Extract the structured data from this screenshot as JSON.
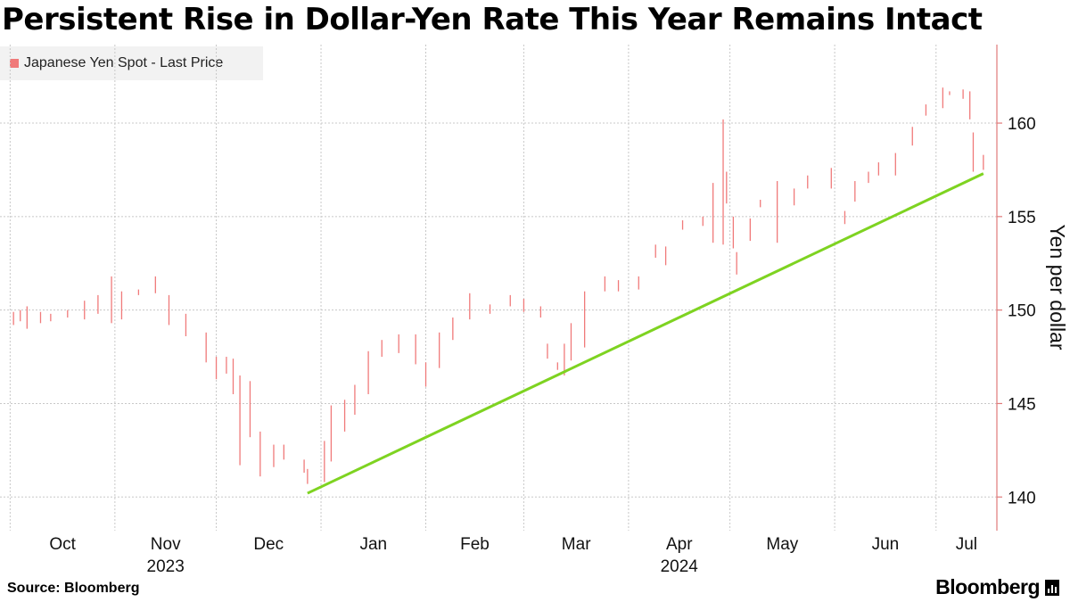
{
  "title": "Persistent Rise in Dollar-Yen Rate This Year Remains Intact",
  "footer": {
    "source": "Source: Bloomberg",
    "brand": "Bloomberg",
    "brand_icon": "bloomberg-chart-icon"
  },
  "colors": {
    "series": "#f07a7a",
    "trendline": "#7ed321",
    "axis": "#e07a7a",
    "grid": "#c8c8c8"
  },
  "chart_data": {
    "type": "line",
    "title": "Persistent Rise in Dollar-Yen Rate This Year Remains Intact",
    "ylabel": "Yen per dollar",
    "ylim": [
      138.2,
      164.2
    ],
    "yticks": [
      140,
      145,
      150,
      155,
      160
    ],
    "y_axis_side": "right",
    "grid": true,
    "legend": {
      "placement": "top-left",
      "entries": [
        "Japanese Yen Spot - Last Price"
      ]
    },
    "x_months": [
      {
        "label": "Oct",
        "year": ""
      },
      {
        "label": "Nov",
        "year": "2023"
      },
      {
        "label": "Dec",
        "year": ""
      },
      {
        "label": "Jan",
        "year": ""
      },
      {
        "label": "Feb",
        "year": ""
      },
      {
        "label": "Mar",
        "year": ""
      },
      {
        "label": "Apr",
        "year": "2024"
      },
      {
        "label": "May",
        "year": ""
      },
      {
        "label": "Jun",
        "year": ""
      },
      {
        "label": "Jul",
        "year": ""
      }
    ],
    "series": [
      {
        "name": "Japanese Yen Spot - Last Price",
        "style": "high-low bars",
        "x": [
          "2023-10-02",
          "2023-10-04",
          "2023-10-06",
          "2023-10-10",
          "2023-10-13",
          "2023-10-18",
          "2023-10-23",
          "2023-10-27",
          "2023-10-31",
          "2023-11-03",
          "2023-11-08",
          "2023-11-13",
          "2023-11-17",
          "2023-11-22",
          "2023-11-28",
          "2023-12-01",
          "2023-12-04",
          "2023-12-06",
          "2023-12-08",
          "2023-12-11",
          "2023-12-14",
          "2023-12-18",
          "2023-12-21",
          "2023-12-27",
          "2023-12-28",
          "2024-01-02",
          "2024-01-04",
          "2024-01-08",
          "2024-01-11",
          "2024-01-15",
          "2024-01-19",
          "2024-01-24",
          "2024-01-29",
          "2024-02-01",
          "2024-02-05",
          "2024-02-09",
          "2024-02-14",
          "2024-02-20",
          "2024-02-26",
          "2024-03-01",
          "2024-03-06",
          "2024-03-08",
          "2024-03-11",
          "2024-03-13",
          "2024-03-15",
          "2024-03-19",
          "2024-03-25",
          "2024-03-29",
          "2024-04-04",
          "2024-04-09",
          "2024-04-12",
          "2024-04-17",
          "2024-04-23",
          "2024-04-26",
          "2024-04-29",
          "2024-04-30",
          "2024-05-02",
          "2024-05-03",
          "2024-05-07",
          "2024-05-10",
          "2024-05-15",
          "2024-05-20",
          "2024-05-24",
          "2024-05-31",
          "2024-06-04",
          "2024-06-07",
          "2024-06-11",
          "2024-06-14",
          "2024-06-19",
          "2024-06-24",
          "2024-06-28",
          "2024-07-03",
          "2024-07-05",
          "2024-07-09",
          "2024-07-11",
          "2024-07-12",
          "2024-07-15"
        ],
        "high": [
          149.9,
          150.0,
          150.2,
          149.9,
          149.8,
          150.0,
          150.5,
          150.8,
          151.8,
          151.0,
          151.1,
          151.8,
          150.8,
          149.8,
          148.8,
          147.5,
          147.5,
          147.4,
          146.5,
          146.2,
          143.5,
          142.8,
          142.8,
          142.0,
          141.5,
          143.0,
          144.9,
          145.2,
          146.0,
          147.8,
          148.4,
          148.7,
          148.7,
          147.2,
          148.8,
          149.6,
          150.9,
          150.3,
          150.8,
          150.6,
          150.2,
          148.2,
          147.2,
          148.2,
          149.3,
          151.0,
          151.8,
          151.6,
          151.8,
          153.5,
          153.4,
          154.8,
          155.0,
          156.8,
          160.2,
          157.4,
          155.0,
          153.1,
          154.9,
          155.9,
          156.9,
          156.5,
          157.2,
          157.6,
          155.3,
          156.9,
          157.4,
          157.9,
          158.4,
          159.8,
          161.0,
          161.9,
          161.7,
          161.8,
          161.7,
          159.5,
          158.3
        ],
        "low": [
          149.2,
          149.4,
          149.0,
          149.3,
          149.4,
          149.6,
          149.5,
          149.8,
          149.3,
          149.5,
          150.8,
          150.9,
          149.2,
          148.6,
          147.2,
          146.3,
          146.6,
          145.5,
          141.7,
          143.2,
          141.1,
          141.6,
          142.0,
          141.3,
          140.7,
          140.8,
          141.9,
          143.5,
          144.4,
          145.5,
          147.5,
          147.7,
          147.1,
          145.9,
          146.9,
          148.4,
          149.5,
          149.8,
          150.2,
          149.9,
          149.6,
          147.4,
          146.8,
          146.5,
          147.3,
          148.0,
          151.0,
          151.0,
          151.1,
          152.8,
          152.4,
          154.3,
          154.5,
          153.6,
          153.5,
          155.7,
          153.3,
          151.9,
          153.7,
          155.5,
          153.6,
          155.6,
          156.5,
          156.5,
          154.6,
          155.8,
          156.8,
          157.2,
          157.2,
          158.8,
          160.4,
          160.8,
          161.5,
          161.3,
          160.2,
          157.4,
          157.5
        ]
      }
    ],
    "trendline": {
      "name": "",
      "x": [
        "2023-12-28",
        "2024-07-15"
      ],
      "y": [
        140.2,
        157.3
      ]
    }
  }
}
